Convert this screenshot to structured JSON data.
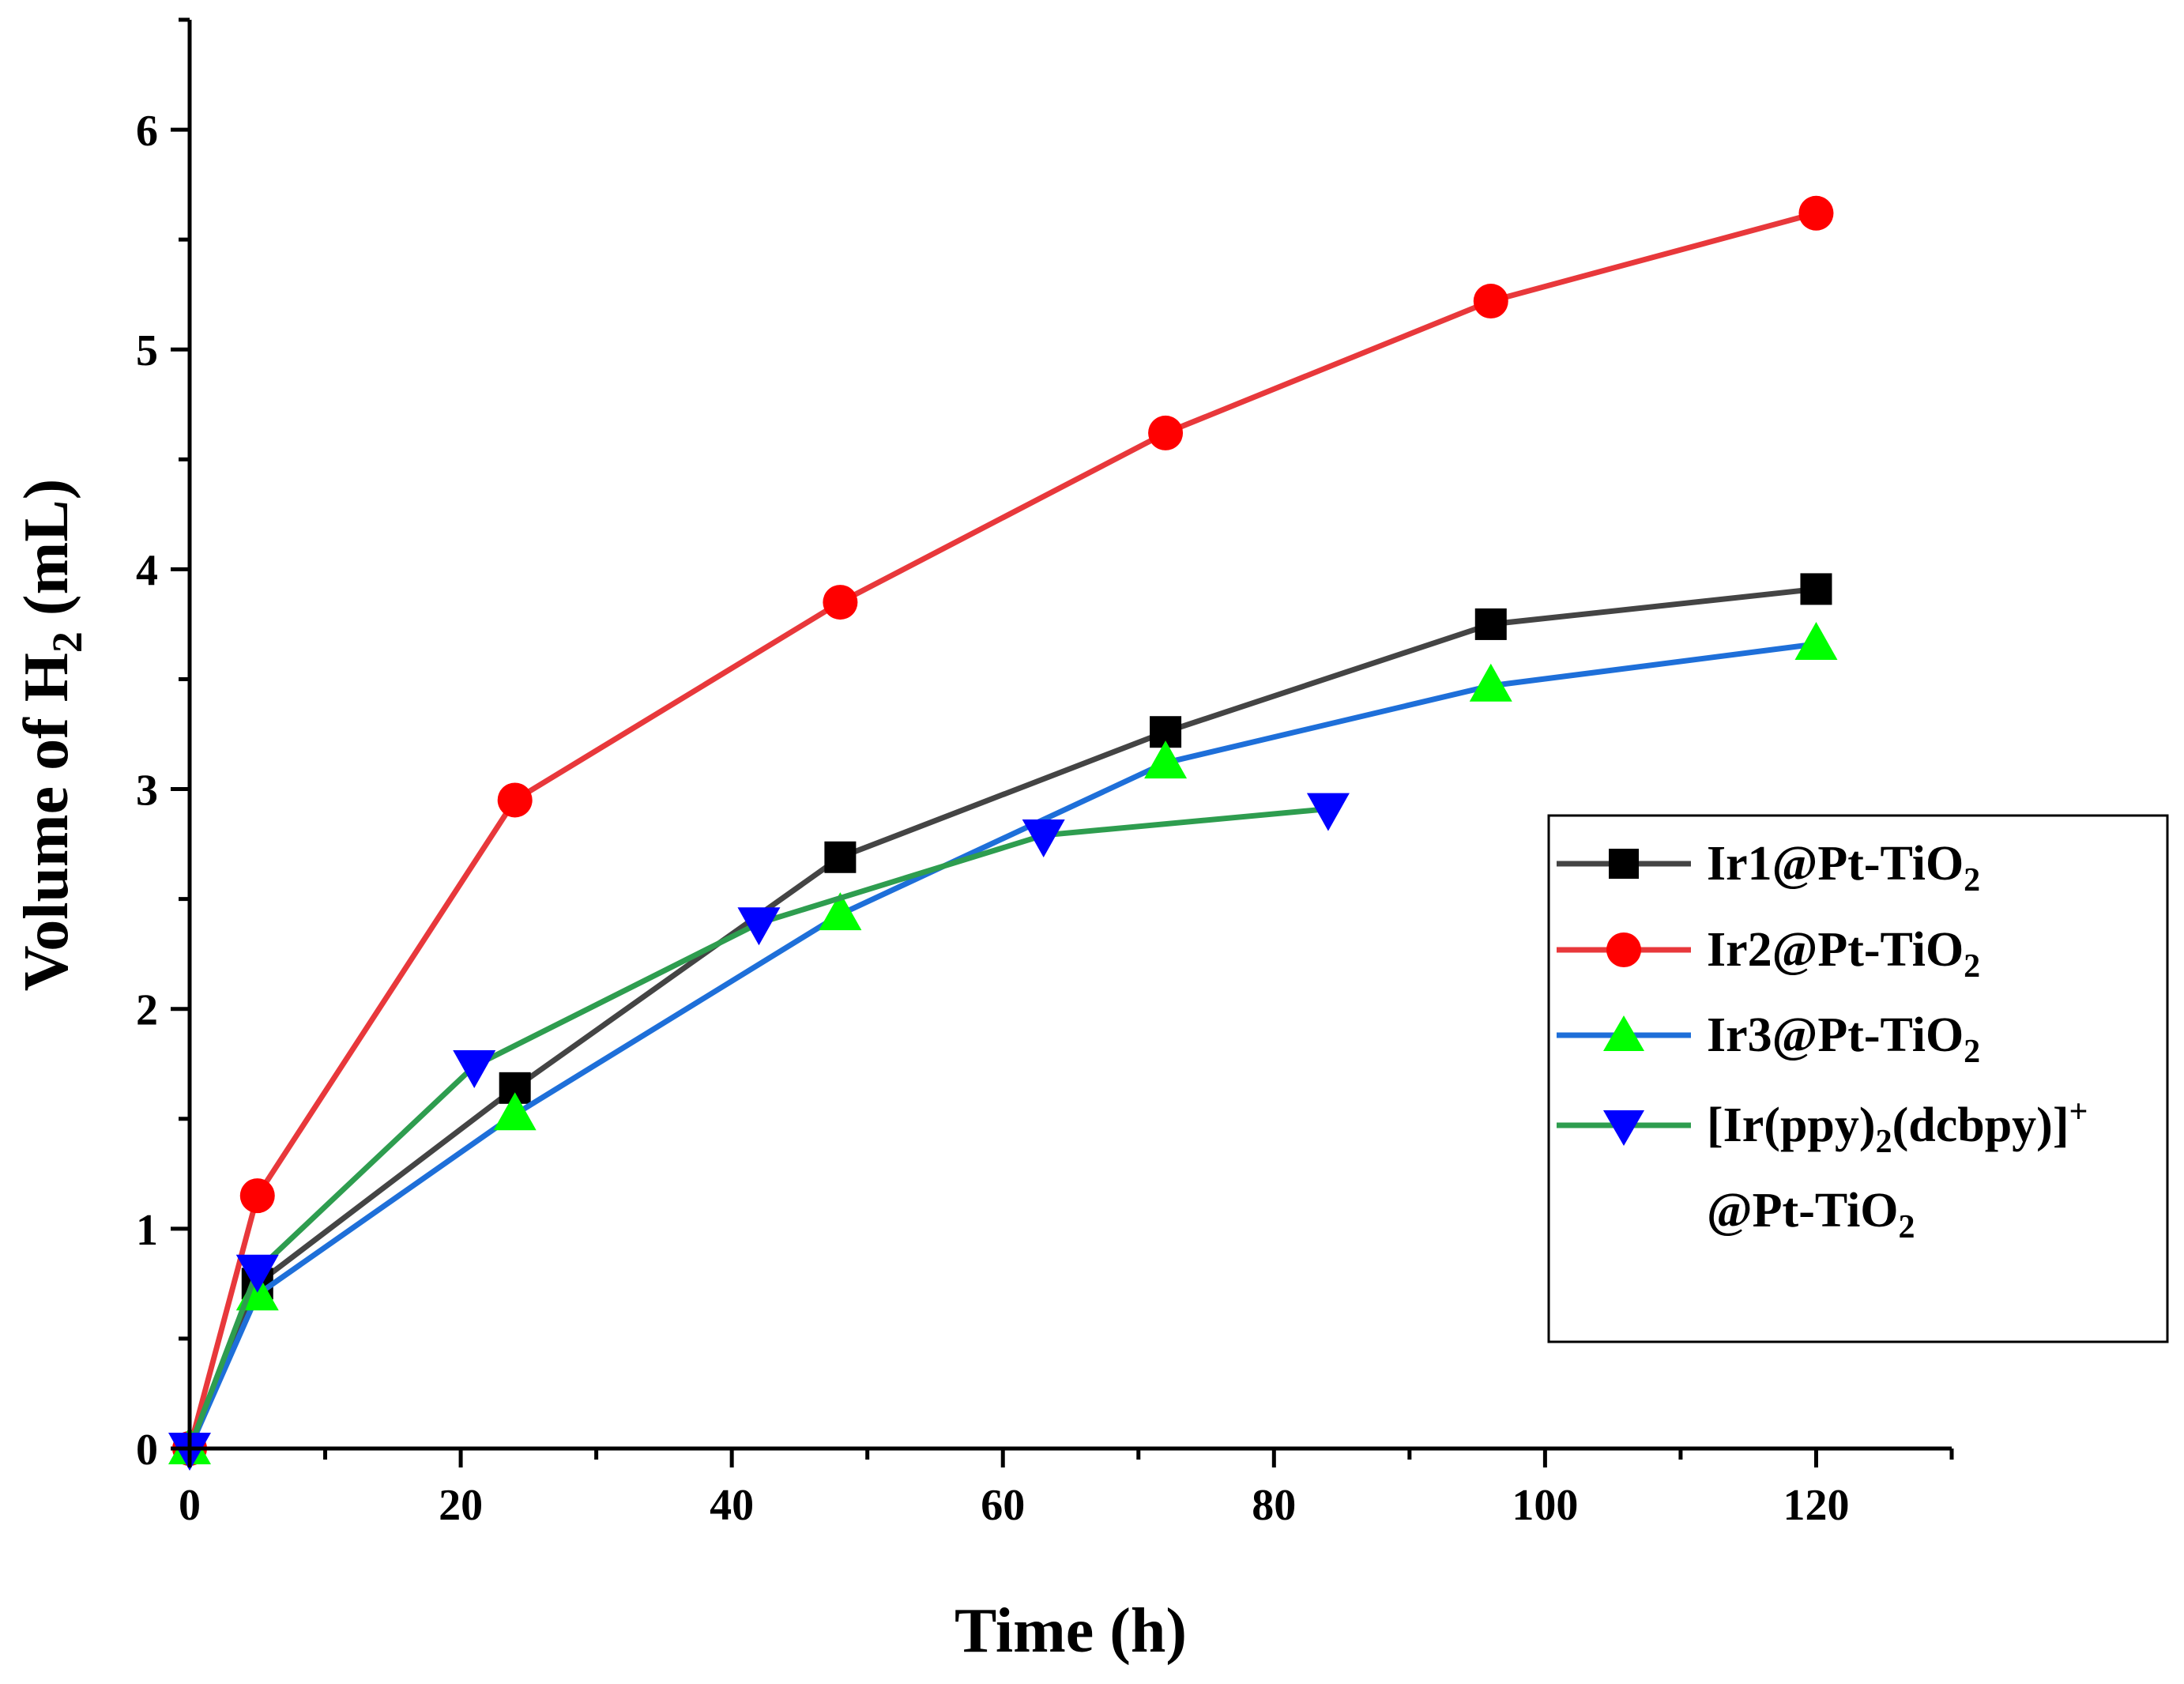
{
  "chart_data": {
    "type": "line",
    "title": "",
    "xlabel": "Time (h)",
    "ylabel_parts": {
      "main": "Volume of H",
      "sub": "2",
      "tail": " (mL)"
    },
    "xlim": [
      0,
      130
    ],
    "ylim": [
      0,
      6.5
    ],
    "xticks": [
      0,
      20,
      40,
      60,
      80,
      100,
      120
    ],
    "yticks": [
      0,
      1,
      2,
      3,
      4,
      5,
      6
    ],
    "legend_position": "right",
    "series": [
      {
        "name": "Ir1@Pt-TiO2",
        "label_parts": {
          "main": "Ir1@Pt-TiO",
          "sub": "2"
        },
        "color": "#444444",
        "marker": "square",
        "marker_color": "#000000",
        "x": [
          0,
          5,
          24,
          48,
          72,
          96,
          120
        ],
        "y": [
          0,
          0.75,
          1.64,
          2.69,
          3.26,
          3.75,
          3.91
        ]
      },
      {
        "name": "Ir2@Pt-TiO2",
        "label_parts": {
          "main": "Ir2@Pt-TiO",
          "sub": "2"
        },
        "color": "#e8383b",
        "marker": "circle",
        "marker_color": "#ff0000",
        "x": [
          0,
          5,
          24,
          48,
          72,
          96,
          120
        ],
        "y": [
          0,
          1.15,
          2.95,
          3.85,
          4.62,
          5.22,
          5.62
        ]
      },
      {
        "name": "Ir3@Pt-TiO2",
        "label_parts": {
          "main": "Ir3@Pt-TiO",
          "sub": "2"
        },
        "color": "#1e6fd9",
        "marker": "triangle-up",
        "marker_color": "#00ff00",
        "x": [
          0,
          5,
          24,
          48,
          72,
          96,
          120
        ],
        "y": [
          0,
          0.7,
          1.52,
          2.43,
          3.12,
          3.47,
          3.66
        ]
      },
      {
        "name": "[Ir(ppy)2(dcbpy)]+@Pt-TiO2",
        "label_parts": {
          "line1_main": "[Ir(ppy)",
          "line1_sub": "2",
          "line1_tail": "(dcbpy)]",
          "line1_sup": "+",
          "line2_main": "@Pt-TiO",
          "line2_sub": "2"
        },
        "color": "#2e9d4f",
        "marker": "triangle-down",
        "marker_color": "#0000ff",
        "x": [
          0,
          5,
          21,
          42,
          63,
          84
        ],
        "y": [
          0,
          0.81,
          1.74,
          2.39,
          2.79,
          2.91
        ]
      }
    ]
  }
}
